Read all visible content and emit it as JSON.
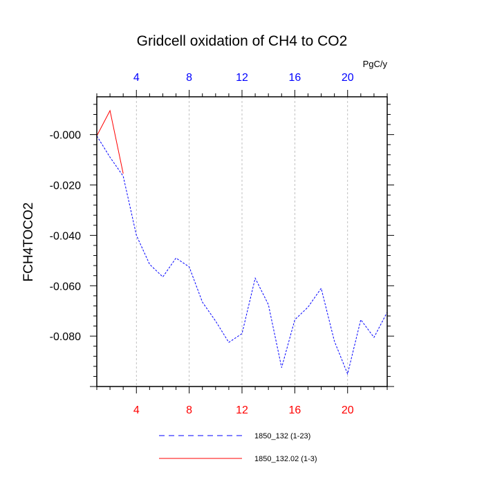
{
  "chart_data": {
    "type": "line",
    "title": "Gridcell oxidation of CH4 to CO2",
    "ylabel": "FCH4TOCO2",
    "units_label": "PgC/y",
    "xlim": [
      1,
      23
    ],
    "ylim": [
      -0.1,
      0.015
    ],
    "x_ticks": [
      4,
      8,
      12,
      16,
      20
    ],
    "x_tick_labels": [
      "4",
      "8",
      "12",
      "16",
      "20"
    ],
    "y_ticks": [
      0.0,
      -0.02,
      -0.04,
      -0.06,
      -0.08
    ],
    "y_tick_labels": [
      "-0.000",
      "-0.020",
      "-0.040",
      "-0.060",
      "-0.080"
    ],
    "gridlines": "vertical dashed at x ticks",
    "series": [
      {
        "name": "1850_132 (1-23)",
        "color": "#0000ff",
        "style": "dashed",
        "x": [
          1,
          2,
          3,
          4,
          5,
          6,
          7,
          8,
          9,
          10,
          11,
          12,
          13,
          14,
          15,
          16,
          17,
          18,
          19,
          20,
          21,
          22,
          23
        ],
        "values": [
          -0.0005,
          -0.009,
          -0.0165,
          -0.04,
          -0.0515,
          -0.0565,
          -0.049,
          -0.0525,
          -0.0665,
          -0.074,
          -0.0825,
          -0.079,
          -0.057,
          -0.0675,
          -0.0925,
          -0.0735,
          -0.0685,
          -0.061,
          -0.082,
          -0.095,
          -0.0735,
          -0.0805,
          -0.0705
        ]
      },
      {
        "name": "1850_132.02 (1-3)",
        "color": "#ff0000",
        "style": "solid",
        "x": [
          1,
          2,
          3
        ],
        "values": [
          -0.0005,
          0.0095,
          -0.0155
        ]
      }
    ],
    "legend_position": "bottom"
  }
}
